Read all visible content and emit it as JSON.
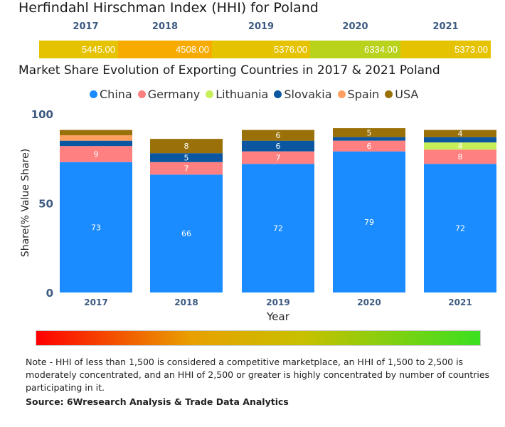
{
  "hhi": {
    "title": "Herfindahl Hirschman Index (HHI) for Poland",
    "years": [
      "2017",
      "2018",
      "2019",
      "2020",
      "2021"
    ],
    "values": [
      "5445.00",
      "4508.00",
      "5376.00",
      "6334.00",
      "5373.00"
    ],
    "colors": [
      "#e6c300",
      "#f7ab00",
      "#e6c300",
      "#b9d21c",
      "#e6c300"
    ]
  },
  "chart_data": {
    "type": "bar",
    "stacked": true,
    "title": "Market Share Evolution of Exporting Countries in 2017 & 2021 Poland",
    "xlabel": "Year",
    "ylabel": "Share(% Value Share)",
    "ylim": [
      0,
      100
    ],
    "yticks": [
      "0",
      "50",
      "100"
    ],
    "categories": [
      "2017",
      "2018",
      "2019",
      "2020",
      "2021"
    ],
    "legend_position": "top",
    "series": [
      {
        "name": "China",
        "color": "#1a8cff",
        "values": [
          73,
          66,
          72,
          79,
          72
        ],
        "labels": [
          "73",
          "66",
          "72",
          "79",
          "72"
        ]
      },
      {
        "name": "Germany",
        "color": "#ff8080",
        "values": [
          9,
          7,
          7,
          6,
          8
        ],
        "labels": [
          "9",
          "7",
          "7",
          "6",
          "8"
        ]
      },
      {
        "name": "Lithuania",
        "color": "#c6ef5a",
        "values": [
          0,
          0,
          0,
          0,
          4
        ],
        "labels": [
          null,
          null,
          null,
          null,
          "4"
        ]
      },
      {
        "name": "Slovakia",
        "color": "#0a56a0",
        "values": [
          3,
          5,
          6,
          2,
          3
        ],
        "labels": [
          null,
          "5",
          "6",
          null,
          null
        ]
      },
      {
        "name": "Spain",
        "color": "#ffa060",
        "values": [
          3,
          0,
          0,
          0,
          0
        ],
        "labels": [
          null,
          null,
          null,
          null,
          null
        ]
      },
      {
        "name": "USA",
        "color": "#9a7008",
        "values": [
          3,
          8,
          6,
          5,
          4
        ],
        "labels": [
          null,
          "8",
          "6",
          "5",
          "4"
        ]
      }
    ]
  },
  "note": "Note - HHI of less than 1,500 is considered a competitive marketplace, an HHI of 1,500 to 2,500 is moderately concentrated, and an HHI of 2,500 or greater is highly concentrated by number of countries participating in it.",
  "source": "Source: 6Wresearch Analysis & Trade Data Analytics"
}
